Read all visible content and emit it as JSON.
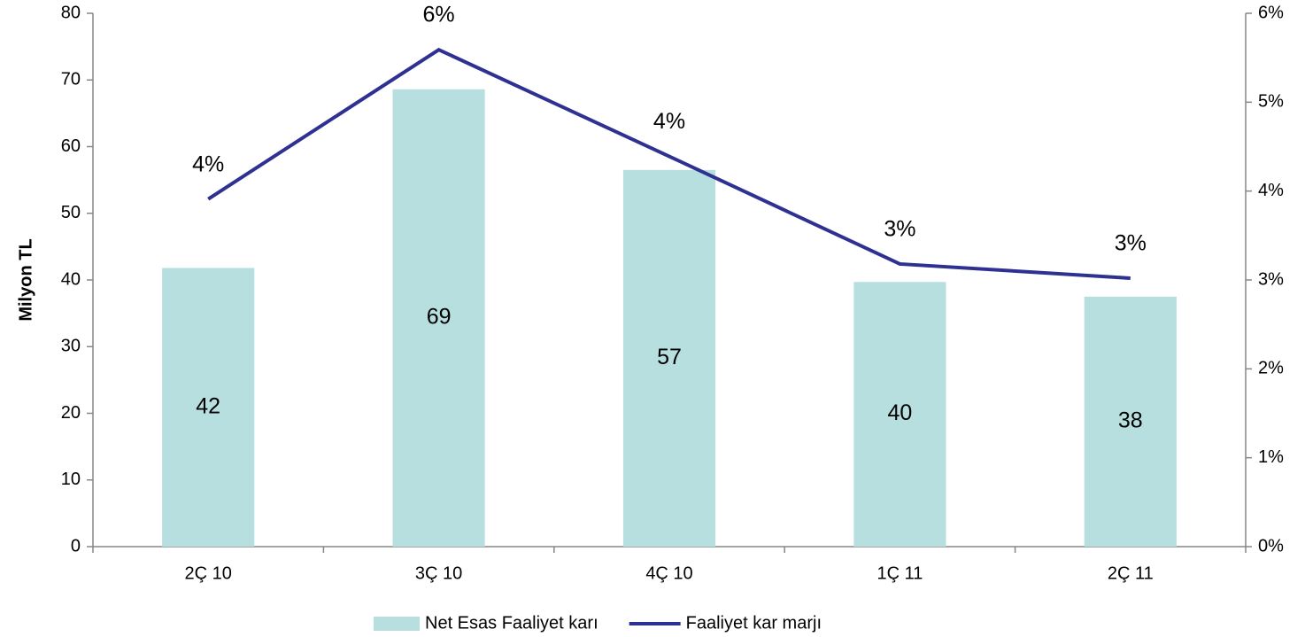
{
  "chart_data": {
    "type": "bar",
    "y_label": "Milyon TL",
    "categories": [
      "2Ç 10",
      "3Ç 10",
      "4Ç 10",
      "1Ç 11",
      "2Ç 11"
    ],
    "series": [
      {
        "name": "Net Esas Faaliyet karı",
        "type": "bar",
        "color": "#b7dfe0",
        "values": [
          41.8,
          68.6,
          56.5,
          39.7,
          37.5
        ],
        "value_labels": [
          "42",
          "69",
          "57",
          "40",
          "38"
        ]
      },
      {
        "name": "Faaliyet kar marjı",
        "type": "line",
        "axis": "y2",
        "color": "#2e3192",
        "values": [
          3.91,
          5.59,
          4.39,
          3.18,
          3.02
        ],
        "value_labels": [
          "4%",
          "6%",
          "4%",
          "3%",
          "3%"
        ]
      }
    ],
    "ylim": [
      0,
      80
    ],
    "yticks": [
      0,
      10,
      20,
      30,
      40,
      50,
      60,
      70,
      80
    ],
    "y2lim": [
      0,
      6
    ],
    "y2ticks": [
      {
        "value": 0,
        "label": "0%"
      },
      {
        "value": 1,
        "label": "1%"
      },
      {
        "value": 2,
        "label": "2%"
      },
      {
        "value": 3,
        "label": "3%"
      },
      {
        "value": 4,
        "label": "4%"
      },
      {
        "value": 5,
        "label": "5%"
      },
      {
        "value": 6,
        "label": "6%"
      }
    ],
    "legend": "bottom"
  }
}
